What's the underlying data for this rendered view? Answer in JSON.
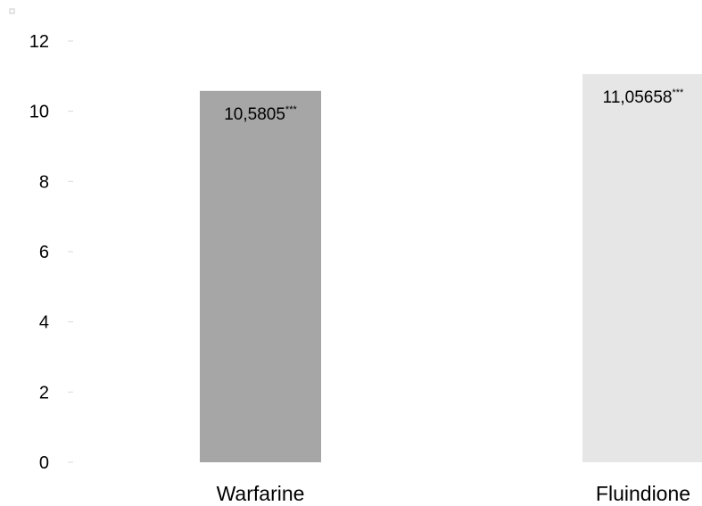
{
  "chart_data": {
    "type": "bar",
    "title": "",
    "xlabel": "",
    "ylabel": "",
    "ylim": [
      0,
      12
    ],
    "yticks": [
      0,
      2,
      4,
      6,
      8,
      10,
      12
    ],
    "categories": [
      "Warfarine",
      "Fluindione"
    ],
    "values": [
      10.5805,
      11.05658
    ],
    "data_labels": [
      {
        "value": "10,5805",
        "significance": "***"
      },
      {
        "value": "11,05658",
        "significance": "***"
      }
    ],
    "colors": [
      "#a6a6a6",
      "#e6e6e6"
    ],
    "grid": false,
    "legend": "none"
  }
}
